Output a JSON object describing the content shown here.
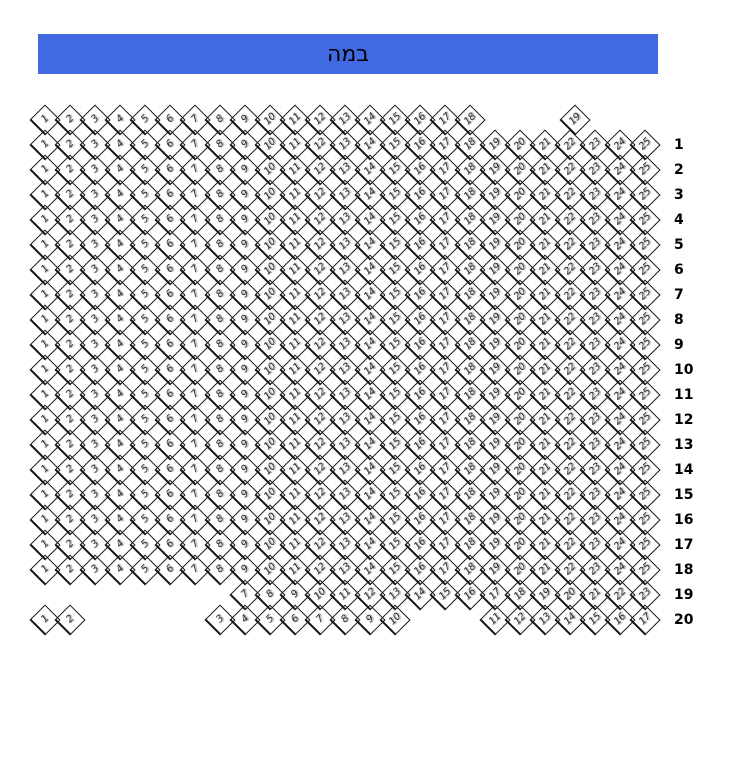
{
  "stage": {
    "label": "במה"
  },
  "colors": {
    "banner_bg": "#4169E1",
    "banner_text": "#000000",
    "seat_outline": "#161616",
    "seat_number": "#2E2E2E",
    "row_label": "#000000"
  },
  "seat_map": {
    "rows": [
      {
        "label": "",
        "segments": [
          {
            "from": 1,
            "to": 18,
            "col": 0
          },
          {
            "from": 19,
            "to": 19,
            "col": 21.2
          }
        ]
      },
      {
        "label": "1",
        "segments": [
          {
            "from": 1,
            "to": 25,
            "col": 0
          }
        ]
      },
      {
        "label": "2",
        "segments": [
          {
            "from": 1,
            "to": 25,
            "col": 0
          }
        ]
      },
      {
        "label": "3",
        "segments": [
          {
            "from": 1,
            "to": 25,
            "col": 0
          }
        ]
      },
      {
        "label": "4",
        "segments": [
          {
            "from": 1,
            "to": 25,
            "col": 0
          }
        ]
      },
      {
        "label": "5",
        "segments": [
          {
            "from": 1,
            "to": 25,
            "col": 0
          }
        ]
      },
      {
        "label": "6",
        "segments": [
          {
            "from": 1,
            "to": 25,
            "col": 0
          }
        ]
      },
      {
        "label": "7",
        "segments": [
          {
            "from": 1,
            "to": 25,
            "col": 0
          }
        ]
      },
      {
        "label": "8",
        "segments": [
          {
            "from": 1,
            "to": 25,
            "col": 0
          }
        ]
      },
      {
        "label": "9",
        "segments": [
          {
            "from": 1,
            "to": 25,
            "col": 0
          }
        ]
      },
      {
        "label": "10",
        "segments": [
          {
            "from": 1,
            "to": 25,
            "col": 0
          }
        ]
      },
      {
        "label": "11",
        "segments": [
          {
            "from": 1,
            "to": 25,
            "col": 0
          }
        ]
      },
      {
        "label": "12",
        "segments": [
          {
            "from": 1,
            "to": 25,
            "col": 0
          }
        ]
      },
      {
        "label": "13",
        "segments": [
          {
            "from": 1,
            "to": 25,
            "col": 0
          }
        ]
      },
      {
        "label": "14",
        "segments": [
          {
            "from": 1,
            "to": 25,
            "col": 0
          }
        ]
      },
      {
        "label": "15",
        "segments": [
          {
            "from": 1,
            "to": 25,
            "col": 0
          }
        ]
      },
      {
        "label": "16",
        "segments": [
          {
            "from": 1,
            "to": 25,
            "col": 0
          }
        ]
      },
      {
        "label": "17",
        "segments": [
          {
            "from": 1,
            "to": 25,
            "col": 0
          }
        ]
      },
      {
        "label": "18",
        "segments": [
          {
            "from": 1,
            "to": 25,
            "col": 0
          }
        ]
      },
      {
        "label": "19",
        "segments": [
          {
            "from": 7,
            "to": 23,
            "col": 8
          }
        ]
      },
      {
        "label": "20",
        "segments": [
          {
            "from": 1,
            "to": 2,
            "col": 0
          },
          {
            "from": 3,
            "to": 10,
            "col": 7
          },
          {
            "from": 11,
            "to": 17,
            "col": 18
          }
        ]
      }
    ]
  }
}
